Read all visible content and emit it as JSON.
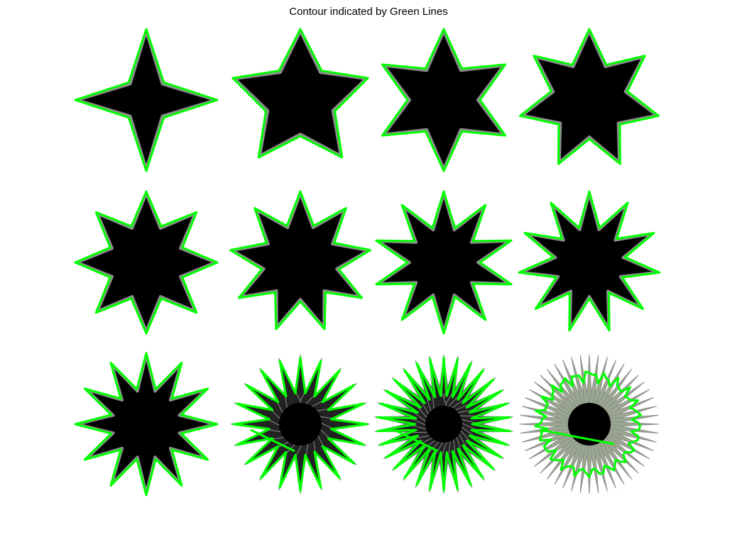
{
  "title": "Contour indicated by Green Lines",
  "colors": {
    "shape_fill": "#000000",
    "halo": "#8c8c8c",
    "contour": "#00ff00",
    "spike_fade": "#9aa88e",
    "background": "#ffffff"
  },
  "grid": {
    "rows": 3,
    "cols": 4
  },
  "shapes": [
    {
      "points": 4,
      "contour": "tight"
    },
    {
      "points": 5,
      "contour": "tight"
    },
    {
      "points": 6,
      "contour": "tight"
    },
    {
      "points": 7,
      "contour": "tight"
    },
    {
      "points": 8,
      "contour": "tight"
    },
    {
      "points": 9,
      "contour": "tight"
    },
    {
      "points": 10,
      "contour": "tight"
    },
    {
      "points": 11,
      "contour": "tight"
    },
    {
      "points": 12,
      "contour": "tight"
    },
    {
      "points": 20,
      "contour": "loose"
    },
    {
      "points": 30,
      "contour": "loose"
    },
    {
      "points": 48,
      "contour": "failed"
    }
  ]
}
